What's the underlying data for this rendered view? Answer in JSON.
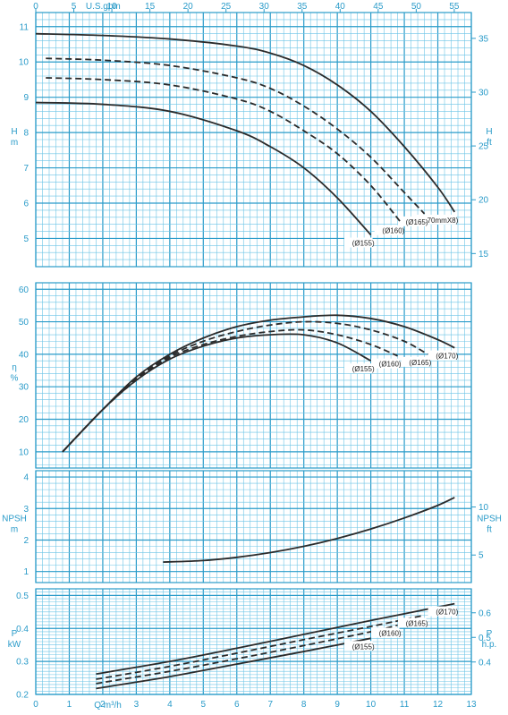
{
  "chart_data": [
    {
      "type": "line",
      "panel": "head",
      "ylabel_left": "H\nm",
      "ylabel_right": "H\nft",
      "ylim": [
        4.2,
        11.4
      ],
      "yticks_left": [
        5,
        6,
        7,
        8,
        9,
        10,
        11
      ],
      "yticks_right": [
        15,
        20,
        25,
        30,
        35
      ],
      "x2label": "U.S.gpm",
      "x2ticks": [
        0,
        5,
        10,
        15,
        20,
        25,
        30,
        35,
        40,
        45,
        50,
        55
      ],
      "series": [
        {
          "name": "(Ø170mmX8)",
          "style": "solid",
          "points": [
            [
              0,
              10.8
            ],
            [
              2,
              10.75
            ],
            [
              4,
              10.65
            ],
            [
              6,
              10.45
            ],
            [
              7,
              10.25
            ],
            [
              8,
              9.9
            ],
            [
              9,
              9.35
            ],
            [
              10,
              8.6
            ],
            [
              11,
              7.6
            ],
            [
              12,
              6.45
            ],
            [
              12.5,
              5.75
            ]
          ]
        },
        {
          "name": "(Ø165)",
          "style": "dashed",
          "points": [
            [
              0.3,
              10.1
            ],
            [
              2,
              10.05
            ],
            [
              4,
              9.9
            ],
            [
              6,
              9.55
            ],
            [
              7,
              9.25
            ],
            [
              8,
              8.75
            ],
            [
              9,
              8.1
            ],
            [
              10,
              7.3
            ],
            [
              11,
              6.3
            ],
            [
              11.6,
              5.7
            ]
          ]
        },
        {
          "name": "(Ø160)",
          "style": "dashed",
          "points": [
            [
              0.3,
              9.55
            ],
            [
              2,
              9.5
            ],
            [
              4,
              9.35
            ],
            [
              6,
              8.95
            ],
            [
              7,
              8.6
            ],
            [
              8,
              8.05
            ],
            [
              9,
              7.4
            ],
            [
              10,
              6.5
            ],
            [
              10.9,
              5.45
            ]
          ]
        },
        {
          "name": "(Ø155)",
          "style": "solid",
          "points": [
            [
              0,
              8.85
            ],
            [
              2,
              8.8
            ],
            [
              4,
              8.6
            ],
            [
              6,
              8.05
            ],
            [
              7,
              7.6
            ],
            [
              8,
              7.0
            ],
            [
              9,
              6.15
            ],
            [
              10,
              5.1
            ]
          ]
        }
      ]
    },
    {
      "type": "line",
      "panel": "efficiency",
      "ylabel_left": "η\n%",
      "ylim": [
        5,
        62
      ],
      "yticks_left": [
        10,
        20,
        30,
        40,
        50,
        60
      ],
      "series": [
        {
          "name": "(Ø170)",
          "style": "solid",
          "points": [
            [
              0.8,
              10
            ],
            [
              2,
              23
            ],
            [
              3,
              33
            ],
            [
              4,
              40
            ],
            [
              5,
              45
            ],
            [
              6,
              48.5
            ],
            [
              7,
              50.5
            ],
            [
              8,
              51.5
            ],
            [
              9,
              52
            ],
            [
              10,
              51
            ],
            [
              11,
              48.5
            ],
            [
              12,
              44.5
            ],
            [
              12.5,
              42
            ]
          ]
        },
        {
          "name": "(Ø165)",
          "style": "dashed",
          "points": [
            [
              0.8,
              10
            ],
            [
              2,
              23
            ],
            [
              3,
              32.5
            ],
            [
              4,
              39.5
            ],
            [
              5,
              44
            ],
            [
              6,
              47
            ],
            [
              7,
              49
            ],
            [
              8,
              50
            ],
            [
              9,
              49.5
            ],
            [
              10,
              47.5
            ],
            [
              11,
              44
            ],
            [
              11.7,
              40
            ]
          ]
        },
        {
          "name": "(Ø160)",
          "style": "dashed",
          "points": [
            [
              0.8,
              10
            ],
            [
              2,
              23
            ],
            [
              3,
              32
            ],
            [
              4,
              39
            ],
            [
              5,
              43
            ],
            [
              6,
              45.5
            ],
            [
              7,
              47
            ],
            [
              8,
              47.5
            ],
            [
              9,
              46
            ],
            [
              10,
              43
            ],
            [
              10.8,
              39.5
            ]
          ]
        },
        {
          "name": "(Ø155)",
          "style": "solid",
          "points": [
            [
              0.8,
              10
            ],
            [
              2,
              23
            ],
            [
              3,
              32
            ],
            [
              4,
              38.5
            ],
            [
              5,
              42.5
            ],
            [
              6,
              45
            ],
            [
              7,
              46
            ],
            [
              8,
              46
            ],
            [
              9,
              43.5
            ],
            [
              10,
              38
            ]
          ]
        }
      ]
    },
    {
      "type": "line",
      "panel": "npsh",
      "ylabel_left": "NPSH\nm",
      "ylabel_right": "NPSH\nft",
      "ylim": [
        0.65,
        4.2
      ],
      "yticks_left": [
        1,
        2,
        3,
        4
      ],
      "yticks_right": [
        5,
        10
      ],
      "series": [
        {
          "name": "",
          "style": "solid",
          "points": [
            [
              3.8,
              1.3
            ],
            [
              5,
              1.35
            ],
            [
              6,
              1.45
            ],
            [
              7,
              1.6
            ],
            [
              8,
              1.8
            ],
            [
              9,
              2.05
            ],
            [
              10,
              2.35
            ],
            [
              11,
              2.7
            ],
            [
              12,
              3.1
            ],
            [
              12.5,
              3.35
            ]
          ]
        }
      ]
    },
    {
      "type": "line",
      "panel": "power",
      "ylabel_left": "P\nkW",
      "ylabel_right": "P\nh.p.",
      "xlabel": "Q m³/h",
      "xlim": [
        0,
        13
      ],
      "xticks": [
        0,
        1,
        2,
        3,
        4,
        5,
        6,
        7,
        8,
        9,
        10,
        11,
        12,
        13
      ],
      "ylim": [
        0.2,
        0.52
      ],
      "yticks_left": [
        0.2,
        0.3,
        0.4,
        0.5
      ],
      "yticks_right": [
        0.4,
        0.5,
        0.6
      ],
      "series": [
        {
          "name": "(Ø170)",
          "style": "solid",
          "points": [
            [
              1.8,
              0.262
            ],
            [
              4,
              0.3
            ],
            [
              6,
              0.34
            ],
            [
              8,
              0.382
            ],
            [
              10,
              0.424
            ],
            [
              12.5,
              0.475
            ]
          ]
        },
        {
          "name": "(Ø165)",
          "style": "dashed",
          "points": [
            [
              1.8,
              0.246
            ],
            [
              4,
              0.285
            ],
            [
              6,
              0.325
            ],
            [
              8,
              0.366
            ],
            [
              10,
              0.406
            ],
            [
              11.6,
              0.44
            ]
          ]
        },
        {
          "name": "(Ø160)",
          "style": "dashed",
          "points": [
            [
              1.8,
              0.233
            ],
            [
              4,
              0.27
            ],
            [
              6,
              0.308
            ],
            [
              8,
              0.348
            ],
            [
              10,
              0.39
            ],
            [
              10.8,
              0.41
            ]
          ]
        },
        {
          "name": "(Ø155)",
          "style": "solid",
          "points": [
            [
              1.8,
              0.218
            ],
            [
              4,
              0.254
            ],
            [
              6,
              0.292
            ],
            [
              8,
              0.33
            ],
            [
              10,
              0.37
            ]
          ]
        }
      ]
    }
  ]
}
